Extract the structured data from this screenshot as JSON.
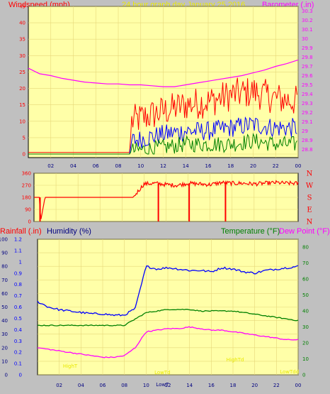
{
  "colors": {
    "bg": "#c0c0c0",
    "plot": "#ffffa8",
    "grid": "#e6d77a",
    "red": "#ff0000",
    "blue": "#0000ff",
    "green": "#008000",
    "magenta": "#ff00ff",
    "yellow": "#e8e800",
    "navy": "#000080",
    "axis": "#000000"
  },
  "top": {
    "left_label": "Windspeed (mph)",
    "center_label": "24 hour graph day  January 25 2016",
    "right_label": "Barometer (.in)"
  },
  "bottom": {
    "rain_label": "Rainfall (.in)",
    "humidity_label": "Humidity (%)",
    "temp_label": "Temperature (°F)",
    "dew_label": "Dew Point (°F)",
    "annot_high": "HighT",
    "annot_low": "LowT",
    "annot_lowtd": "LowTd",
    "annot_hightd": "HighTd",
    "annot_lowtdd": "LowTdd"
  },
  "chart_data": [
    {
      "type": "line",
      "title": "24 hour graph day  January 25 2016",
      "x_ticks": [
        "02",
        "04",
        "06",
        "08",
        "10",
        "12",
        "14",
        "16",
        "18",
        "20",
        "22",
        "00"
      ],
      "y_left": {
        "label": "Windspeed (mph)",
        "ticks": [
          "0",
          "5",
          "10",
          "15",
          "20",
          "25",
          "30",
          "35",
          "40",
          "45"
        ],
        "ylim": [
          0,
          45
        ]
      },
      "y_right": {
        "label": "Barometer (.in)",
        "ticks": [
          "28.8",
          "28.9",
          "29",
          "29.1",
          "29.2",
          "29.3",
          "29.4",
          "29.5",
          "29.6",
          "29.7",
          "29.8",
          "29.9",
          "30",
          "30.1",
          "30.2",
          "30.3"
        ],
        "ylim": [
          28.75,
          30.35
        ]
      },
      "series": [
        {
          "name": "Barometer (.in)",
          "color": "#ff00ff",
          "axis": "right",
          "x": [
            0,
            1,
            2,
            3,
            4,
            5,
            6,
            7,
            8,
            9,
            10,
            11,
            12,
            13,
            14,
            15,
            16,
            17,
            18,
            19,
            20,
            21,
            22,
            23,
            24
          ],
          "values": [
            29.68,
            29.62,
            29.6,
            29.57,
            29.55,
            29.53,
            29.52,
            29.51,
            29.51,
            29.5,
            29.5,
            29.49,
            29.48,
            29.48,
            29.5,
            29.52,
            29.54,
            29.56,
            29.58,
            29.6,
            29.63,
            29.66,
            29.7,
            29.73,
            29.77
          ]
        },
        {
          "name": "gust",
          "color": "#ff0000",
          "axis": "left",
          "x": [
            0,
            9,
            9.2,
            12,
            14,
            16,
            18,
            20,
            22,
            24
          ],
          "values": [
            0.5,
            0.5,
            10,
            13,
            15,
            16,
            18,
            19,
            17,
            16
          ]
        },
        {
          "name": "average",
          "color": "#0000ff",
          "axis": "left",
          "x": [
            0,
            9,
            9.2,
            12,
            14,
            16,
            18,
            20,
            22,
            24
          ],
          "values": [
            0,
            0,
            4,
            6,
            7,
            7,
            8,
            9,
            8,
            8
          ]
        },
        {
          "name": "min",
          "color": "#008000",
          "axis": "left",
          "x": [
            0,
            9,
            9.2,
            12,
            14,
            16,
            18,
            20,
            22,
            24
          ],
          "values": [
            0,
            0,
            1,
            2,
            3,
            3,
            3,
            4,
            3,
            3
          ]
        }
      ]
    },
    {
      "type": "line",
      "y_left": {
        "ticks": [
          "0",
          "90",
          "180",
          "270",
          "360"
        ],
        "ylim": [
          0,
          360
        ]
      },
      "right_letters": [
        "N",
        "W",
        "S",
        "E",
        "N"
      ],
      "series": [
        {
          "name": "direction",
          "color": "#ff0000",
          "x": [
            0,
            0.5,
            0.6,
            1,
            2,
            3,
            4,
            5,
            6,
            7,
            8,
            9,
            10,
            11,
            12,
            13,
            14,
            15,
            16,
            17,
            18,
            19,
            20,
            21,
            22,
            23,
            24
          ],
          "values": [
            180,
            180,
            0,
            180,
            180,
            180,
            180,
            180,
            180,
            180,
            180,
            180,
            280,
            285,
            275,
            270,
            285,
            280,
            275,
            290,
            285,
            285,
            280,
            285,
            290,
            285,
            285
          ]
        }
      ]
    },
    {
      "type": "line",
      "x_ticks": [
        "02",
        "04",
        "06",
        "08",
        "10",
        "12",
        "14",
        "16",
        "18",
        "20",
        "22",
        "00"
      ],
      "y_rain": {
        "label": "Rainfall (.in)",
        "ticks": [
          "0",
          "0.1",
          "0.2",
          "0.3",
          "0.4",
          "0.5",
          "0.6",
          "0.7",
          "0.8",
          "0.9",
          "1",
          "1.1",
          "1.2"
        ],
        "ylim": [
          0,
          1.2
        ]
      },
      "y_humidity": {
        "label": "Humidity (%)",
        "ticks": [
          "0",
          "10",
          "20",
          "30",
          "40",
          "50",
          "60",
          "70",
          "80",
          "90",
          "100"
        ],
        "ylim": [
          0,
          100
        ]
      },
      "y_temp": {
        "label": "Temperature (°F)",
        "ticks": [
          "0",
          "10",
          "20",
          "30",
          "40",
          "50",
          "60",
          "70",
          "80"
        ],
        "ylim": [
          0,
          85
        ]
      },
      "series": [
        {
          "name": "Humidity (%)",
          "color": "#0000ff",
          "x": [
            0,
            1,
            2,
            3,
            4,
            5,
            6,
            7,
            8,
            9,
            10,
            11,
            12,
            13,
            14,
            15,
            16,
            17,
            18,
            19,
            20,
            21,
            22,
            23,
            24
          ],
          "values": [
            54,
            50,
            48,
            47,
            46,
            45,
            45,
            44,
            44,
            49,
            80,
            78,
            79,
            78,
            77,
            77,
            76,
            79,
            78,
            76,
            75,
            77,
            78,
            79,
            80
          ]
        },
        {
          "name": "Temperature (°F)",
          "color": "#008000",
          "x": [
            0,
            1,
            2,
            3,
            4,
            5,
            6,
            7,
            8,
            9,
            10,
            11,
            12,
            13,
            14,
            15,
            16,
            17,
            18,
            19,
            20,
            21,
            22,
            23,
            24
          ],
          "values": [
            31,
            31,
            31,
            31,
            31,
            31,
            31,
            31,
            31,
            35,
            39,
            40,
            41,
            41,
            41,
            40,
            40,
            40,
            40,
            39,
            38,
            37,
            36,
            35,
            34
          ]
        },
        {
          "name": "Dew Point (°F)",
          "color": "#ff00ff",
          "x": [
            0,
            1,
            2,
            3,
            4,
            5,
            6,
            7,
            8,
            9,
            10,
            11,
            12,
            13,
            14,
            15,
            16,
            17,
            18,
            19,
            20,
            21,
            22,
            23,
            24
          ],
          "values": [
            17,
            16,
            15,
            14,
            13,
            12,
            11,
            11,
            12,
            17,
            27,
            28,
            29,
            29,
            30,
            29,
            28,
            28,
            27,
            26,
            25,
            24,
            23,
            22,
            22
          ]
        }
      ]
    }
  ]
}
